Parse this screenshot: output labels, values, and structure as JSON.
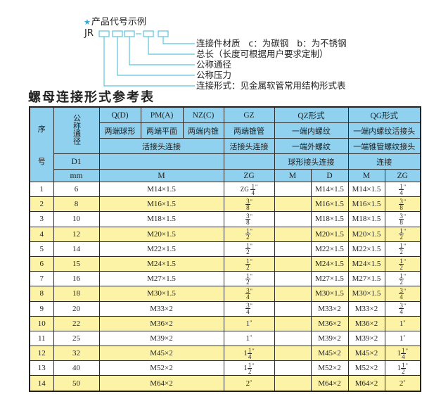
{
  "diagram": {
    "title": "产品代号示例",
    "star_icon": "star-icon",
    "prefix": "JR",
    "dash": "-",
    "labels": [
      "连接件材质   c：为碳钢   b：为不锈钢",
      "总长（长度可根据用户要求定制）",
      "公称通径",
      "公称压力",
      "连接形式：见金属软管常用结构形式表"
    ],
    "accent": "#5cc3dd"
  },
  "table_title": "螺母连接形式参考表",
  "header": {
    "seq_top": "序",
    "seq_bottom": "号",
    "nominal": "公称通径",
    "qd": "Q(D)",
    "pma": "PM(A)",
    "nzc": "NZ(C)",
    "gz": "GZ",
    "qz": "QZ形式",
    "qg": "QG形式",
    "qd_desc": "两端球形",
    "pma_desc": "两端平面",
    "nzc_desc": "两端内锥",
    "gz_desc": "两端锥管",
    "qz_desc": "一端内螺纹",
    "qg_desc": "一端内螺纹活接头",
    "union1": "活接头连接",
    "union2": "活接头连接",
    "qz_desc2": "一端外螺纹",
    "qg_desc2": "一端锥管螺纹接头",
    "d1": "D1",
    "qz_desc3": "球形接头连接",
    "qg_desc3": "连接",
    "mm": "mm",
    "m": "M",
    "zg": "ZG",
    "qz_m": "M",
    "qz_d": "D",
    "qg_m": "M",
    "qg_zg": "ZG"
  },
  "colors": {
    "header_bg": "#8fd1ef",
    "alt_row_bg": "#fcf3a6"
  },
  "rows": [
    {
      "no": "1",
      "d1": "6",
      "m": "M14×1.5",
      "zg": {
        "prefix": "ZG",
        "num": "1",
        "den": "4"
      },
      "qz_m": "",
      "qz_d": "M14×1.5",
      "qg_m": "M14×1.5",
      "qg_zg": {
        "num": "1",
        "den": "4"
      }
    },
    {
      "no": "2",
      "d1": "8",
      "m": "M16×1.5",
      "zg": {
        "num": "3",
        "den": "8"
      },
      "qz_m": "",
      "qz_d": "M16×1.5",
      "qg_m": "M16×1.5",
      "qg_zg": {
        "num": "3",
        "den": "8"
      }
    },
    {
      "no": "3",
      "d1": "10",
      "m": "M18×1.5",
      "zg": {
        "num": "3",
        "den": "8"
      },
      "qz_m": "",
      "qz_d": "M18×1.5",
      "qg_m": "M18×1.5",
      "qg_zg": {
        "num": "3",
        "den": "8"
      }
    },
    {
      "no": "4",
      "d1": "12",
      "m": "M20×1.5",
      "zg": {
        "num": "1",
        "den": "2"
      },
      "qz_m": "",
      "qz_d": "M20×1.5",
      "qg_m": "M20×1.5",
      "qg_zg": {
        "num": "1",
        "den": "2"
      }
    },
    {
      "no": "5",
      "d1": "14",
      "m": "M22×1.5",
      "zg": {
        "num": "1",
        "den": "2"
      },
      "qz_m": "",
      "qz_d": "M22×1.5",
      "qg_m": "M22×1.5",
      "qg_zg": {
        "num": "1",
        "den": "2"
      }
    },
    {
      "no": "6",
      "d1": "15",
      "m": "M24×1.5",
      "zg": {
        "num": "1",
        "den": "2"
      },
      "qz_m": "",
      "qz_d": "M24×1.5",
      "qg_m": "M24×1.5",
      "qg_zg": {
        "num": "1",
        "den": "2"
      }
    },
    {
      "no": "7",
      "d1": "16",
      "m": "M27×1.5",
      "zg": {
        "num": "1",
        "den": "2"
      },
      "qz_m": "",
      "qz_d": "M27×1.5",
      "qg_m": "M27×1.5",
      "qg_zg": {
        "num": "1",
        "den": "2"
      }
    },
    {
      "no": "8",
      "d1": "18",
      "m": "M30×1.5",
      "zg": {
        "num": "3",
        "den": "4"
      },
      "qz_m": "",
      "qz_d": "M30×1.5",
      "qg_m": "M30×1.5",
      "qg_zg": {
        "num": "3",
        "den": "4"
      }
    },
    {
      "no": "9",
      "d1": "20",
      "m": "M33×2",
      "zg": {
        "num": "3",
        "den": "4"
      },
      "qz_m": "",
      "qz_d": "M33×2",
      "qg_m": "M33×2",
      "qg_zg": {
        "num": "3",
        "den": "4"
      }
    },
    {
      "no": "10",
      "d1": "22",
      "m": "M36×2",
      "zg": {
        "whole": "1"
      },
      "qz_m": "",
      "qz_d": "M36×2",
      "qg_m": "M36×2",
      "qg_zg": {
        "whole": "1"
      }
    },
    {
      "no": "11",
      "d1": "25",
      "m": "M39×2",
      "zg": {
        "whole": "1"
      },
      "qz_m": "",
      "qz_d": "M39×2",
      "qg_m": "M39×2",
      "qg_zg": {
        "whole": "1"
      }
    },
    {
      "no": "12",
      "d1": "32",
      "m": "M45×2",
      "zg": {
        "whole": "1",
        "num": "1",
        "den": "4"
      },
      "qz_m": "",
      "qz_d": "M45×2",
      "qg_m": "M45×2",
      "qg_zg": {
        "whole": "1",
        "num": "1",
        "den": "4"
      }
    },
    {
      "no": "13",
      "d1": "40",
      "m": "M52×2",
      "zg": {
        "whole": "1",
        "num": "1",
        "den": "2"
      },
      "qz_m": "",
      "qz_d": "M52×2",
      "qg_m": "M52×2",
      "qg_zg": {
        "whole": "1",
        "num": "1",
        "den": "2"
      }
    },
    {
      "no": "14",
      "d1": "50",
      "m": "M64×2",
      "zg": {
        "whole": "2"
      },
      "qz_m": "",
      "qz_d": "M64×2",
      "qg_m": "M64×2",
      "qg_zg": {
        "whole": "2"
      }
    }
  ]
}
